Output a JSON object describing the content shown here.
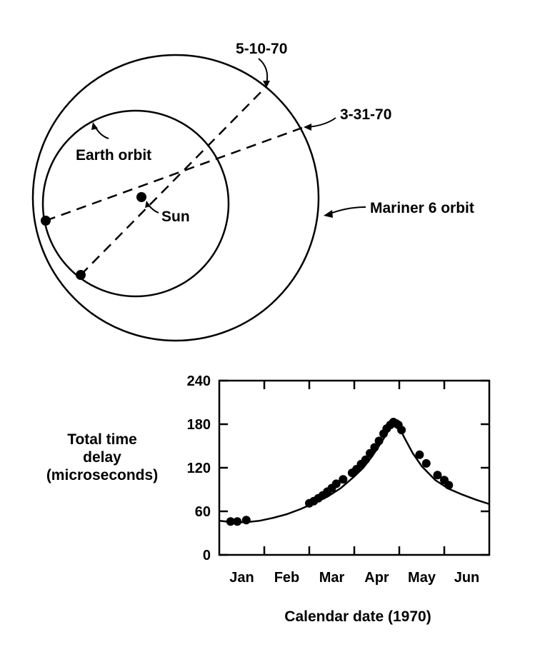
{
  "diagram": {
    "labels": {
      "date_a": "5-10-70",
      "date_b": "3-31-70",
      "earth_orbit": "Earth orbit",
      "mariner_orbit": "Mariner 6 orbit",
      "sun": "Sun"
    }
  },
  "chart_data": {
    "type": "line",
    "xlabel": "Calendar date (1970)",
    "ylabel": "Total time\ndelay\n(microseconds)",
    "ylim": [
      0,
      240
    ],
    "xlim": [
      0,
      6
    ],
    "yticks": [
      0,
      60,
      120,
      180,
      240
    ],
    "month_labels": [
      "Jan",
      "Feb",
      "Mar",
      "Apr",
      "May",
      "Jun"
    ],
    "month_label_x": [
      0.5,
      1.5,
      2.5,
      3.5,
      4.5,
      5.5
    ],
    "grid": false,
    "curve": {
      "x": [
        0.0,
        0.3,
        0.6,
        0.9,
        1.2,
        1.5,
        1.8,
        2.1,
        2.4,
        2.7,
        3.0,
        3.2,
        3.4,
        3.6,
        3.8,
        3.95,
        4.1,
        4.3,
        4.5,
        4.8,
        5.1,
        5.4,
        5.7,
        6.0
      ],
      "y": [
        47,
        45,
        45,
        47,
        51,
        56,
        63,
        71,
        80,
        92,
        108,
        120,
        136,
        155,
        175,
        183,
        163,
        140,
        122,
        103,
        91,
        83,
        76,
        70
      ]
    },
    "points": {
      "x": [
        0.25,
        0.4,
        0.6,
        2.0,
        2.1,
        2.2,
        2.3,
        2.4,
        2.5,
        2.6,
        2.75,
        2.95,
        3.05,
        3.15,
        3.25,
        3.35,
        3.45,
        3.55,
        3.65,
        3.72,
        3.8,
        3.87,
        3.93,
        3.98,
        4.05,
        4.45,
        4.6,
        4.85,
        5.0,
        5.1
      ],
      "y": [
        46,
        46,
        48,
        71,
        74,
        78,
        82,
        87,
        92,
        98,
        104,
        113,
        118,
        125,
        131,
        140,
        148,
        157,
        167,
        174,
        179,
        183,
        181,
        179,
        172,
        138,
        126,
        110,
        103,
        96
      ]
    }
  }
}
